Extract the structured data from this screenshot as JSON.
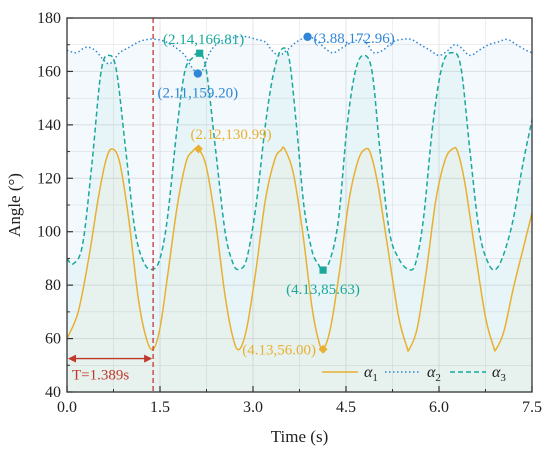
{
  "colors": {
    "alpha1": "#e8b030",
    "alpha2": "#2f86d6",
    "alpha3": "#1aa89a",
    "period": "#c0392b",
    "grid": "#e4e4e4",
    "axis": "#333333"
  },
  "chart_data": {
    "type": "line",
    "title": "",
    "xlabel": "Time (s)",
    "ylabel": "Angle (°)",
    "xlim": [
      0,
      7.5
    ],
    "ylim": [
      40,
      180
    ],
    "xticks": [
      "0.0",
      "1.5",
      "3.0",
      "4.5",
      "6.0",
      "7.5"
    ],
    "yticks": [
      "40",
      "60",
      "80",
      "100",
      "120",
      "140",
      "160",
      "180"
    ],
    "grid": true,
    "legend_position": "bottom-right",
    "series": [
      {
        "name": "α1",
        "legend_main": "α",
        "legend_sub": "1",
        "color": "#e8b030",
        "style": "solid",
        "x": [
          0.0,
          0.18,
          0.35,
          0.5,
          0.62,
          0.72,
          0.85,
          1.0,
          1.15,
          1.28,
          1.39,
          1.5,
          1.62,
          1.78,
          1.92,
          2.02,
          2.12,
          2.25,
          2.4,
          2.55,
          2.68,
          2.78,
          2.9,
          3.05,
          3.2,
          3.35,
          3.45,
          3.51,
          3.65,
          3.8,
          3.95,
          4.05,
          4.13,
          4.25,
          4.4,
          4.55,
          4.7,
          4.82,
          4.9,
          5.02,
          5.18,
          5.35,
          5.48,
          5.52,
          5.65,
          5.8,
          5.95,
          6.1,
          6.22,
          6.3,
          6.42,
          6.58,
          6.75,
          6.88,
          6.92,
          7.05,
          7.2,
          7.35,
          7.5
        ],
        "values": [
          60,
          70,
          90,
          112,
          126,
          130.99,
          126,
          104,
          75,
          60,
          56,
          64,
          83,
          110,
          126,
          130,
          130.99,
          124,
          103,
          76,
          60,
          56,
          64,
          86,
          112,
          127,
          130.5,
          130.99,
          122,
          100,
          72,
          60,
          56,
          64,
          86,
          112,
          127,
          130.99,
          129,
          117,
          93,
          68,
          57,
          56,
          64,
          86,
          112,
          127,
          130.99,
          130,
          118,
          93,
          68,
          57,
          56,
          63,
          79,
          93,
          107
        ]
      },
      {
        "name": "α2",
        "legend_main": "α",
        "legend_sub": "2",
        "color": "#2f86d6",
        "style": "dotted",
        "x": [
          0.0,
          0.15,
          0.3,
          0.45,
          0.6,
          0.7,
          0.85,
          1.0,
          1.15,
          1.3,
          1.45,
          1.6,
          1.75,
          1.9,
          2.0,
          2.11,
          2.2,
          2.3,
          2.45,
          2.6,
          2.75,
          2.9,
          3.05,
          3.2,
          3.3,
          3.42,
          3.55,
          3.7,
          3.88,
          4.0,
          4.1,
          4.2,
          4.3,
          4.45,
          4.6,
          4.75,
          4.85,
          4.95,
          5.1,
          5.25,
          5.4,
          5.55,
          5.7,
          5.85,
          6.0,
          6.15,
          6.25,
          6.35,
          6.5,
          6.65,
          6.8,
          6.95,
          7.1,
          7.25,
          7.4,
          7.5
        ],
        "values": [
          168,
          167,
          169,
          168,
          164,
          163,
          167,
          169,
          171,
          172,
          172,
          171,
          169,
          166,
          162,
          159.2,
          161,
          167,
          171,
          172,
          173,
          173,
          172,
          171,
          168,
          166,
          168,
          171,
          172.96,
          172,
          170,
          168,
          167,
          169,
          171,
          172,
          170,
          167,
          168,
          171,
          172,
          172,
          170,
          168,
          166,
          168,
          170,
          169,
          166,
          168,
          170,
          171,
          172,
          170,
          168,
          167
        ]
      },
      {
        "name": "α3",
        "legend_main": "α",
        "legend_sub": "3",
        "color": "#1aa89a",
        "style": "dashed",
        "x": [
          0.0,
          0.1,
          0.25,
          0.4,
          0.55,
          0.68,
          0.8,
          0.95,
          1.1,
          1.25,
          1.39,
          1.5,
          1.62,
          1.78,
          1.9,
          2.02,
          2.14,
          2.25,
          2.4,
          2.55,
          2.68,
          2.78,
          2.9,
          3.05,
          3.2,
          3.32,
          3.45,
          3.58,
          3.7,
          3.82,
          3.95,
          4.05,
          4.13,
          4.25,
          4.38,
          4.52,
          4.65,
          4.78,
          4.92,
          5.05,
          5.2,
          5.35,
          5.5,
          5.62,
          5.75,
          5.9,
          6.05,
          6.2,
          6.35,
          6.5,
          6.65,
          6.8,
          6.92,
          7.05,
          7.2,
          7.35,
          7.5
        ],
        "values": [
          90,
          88,
          95,
          125,
          160,
          166,
          160,
          130,
          100,
          88,
          86,
          90,
          105,
          140,
          160,
          165,
          166.81,
          160,
          130,
          100,
          88,
          86,
          90,
          110,
          140,
          158,
          168,
          165,
          140,
          110,
          93,
          88,
          85.63,
          90,
          105,
          140,
          160,
          166,
          160,
          130,
          100,
          90,
          86,
          88,
          105,
          140,
          162,
          167,
          162,
          130,
          100,
          88,
          86,
          92,
          105,
          125,
          142
        ]
      }
    ],
    "period_line": {
      "x": 1.389,
      "label": "T=1.389s"
    },
    "annotations": [
      {
        "series": "α3",
        "x": 2.14,
        "y": 166.81,
        "marker": "square",
        "label": "(2.14,166.81)",
        "label_anchor": "above",
        "color": "#1aa89a"
      },
      {
        "series": "α2",
        "x": 2.11,
        "y": 159.2,
        "marker": "circle",
        "label": "(2.11,159.20)",
        "label_anchor": "below",
        "color": "#2f86d6"
      },
      {
        "series": "α2",
        "x": 3.88,
        "y": 172.96,
        "marker": "circle",
        "label": "(3.88,172.96)",
        "label_anchor": "right",
        "color": "#2f86d6"
      },
      {
        "series": "α1",
        "x": 2.12,
        "y": 130.99,
        "marker": "diamond",
        "label": "(2.12,130.99)",
        "label_anchor": "above-right",
        "color": "#e8b030"
      },
      {
        "series": "α3",
        "x": 4.13,
        "y": 85.63,
        "marker": "square",
        "label": "(4.13,85.63)",
        "label_anchor": "below",
        "color": "#1aa89a"
      },
      {
        "series": "α1",
        "x": 4.13,
        "y": 56.0,
        "marker": "diamond",
        "label": "(4.13,56.00)",
        "label_anchor": "left",
        "color": "#e8b030"
      }
    ]
  }
}
